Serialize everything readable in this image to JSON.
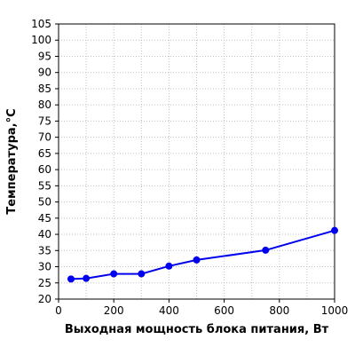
{
  "chart_data": {
    "type": "line",
    "xlabel": "Выходная мощность блока питания, Вт",
    "ylabel": "Температура,°C",
    "xlim": [
      0,
      1000
    ],
    "ylim": [
      20,
      105
    ],
    "x_ticks": [
      0,
      200,
      400,
      600,
      800,
      1000
    ],
    "y_ticks": [
      20,
      25,
      30,
      35,
      40,
      45,
      50,
      55,
      60,
      65,
      70,
      75,
      80,
      85,
      90,
      95,
      100,
      105
    ],
    "grid": true,
    "series": [
      {
        "x": [
          45,
          100,
          200,
          300,
          400,
          500,
          750,
          1000
        ],
        "values": [
          26.2,
          26.4,
          27.8,
          27.8,
          30.2,
          32.1,
          35.1,
          41.2
        ],
        "color": "#0000ee"
      }
    ]
  }
}
